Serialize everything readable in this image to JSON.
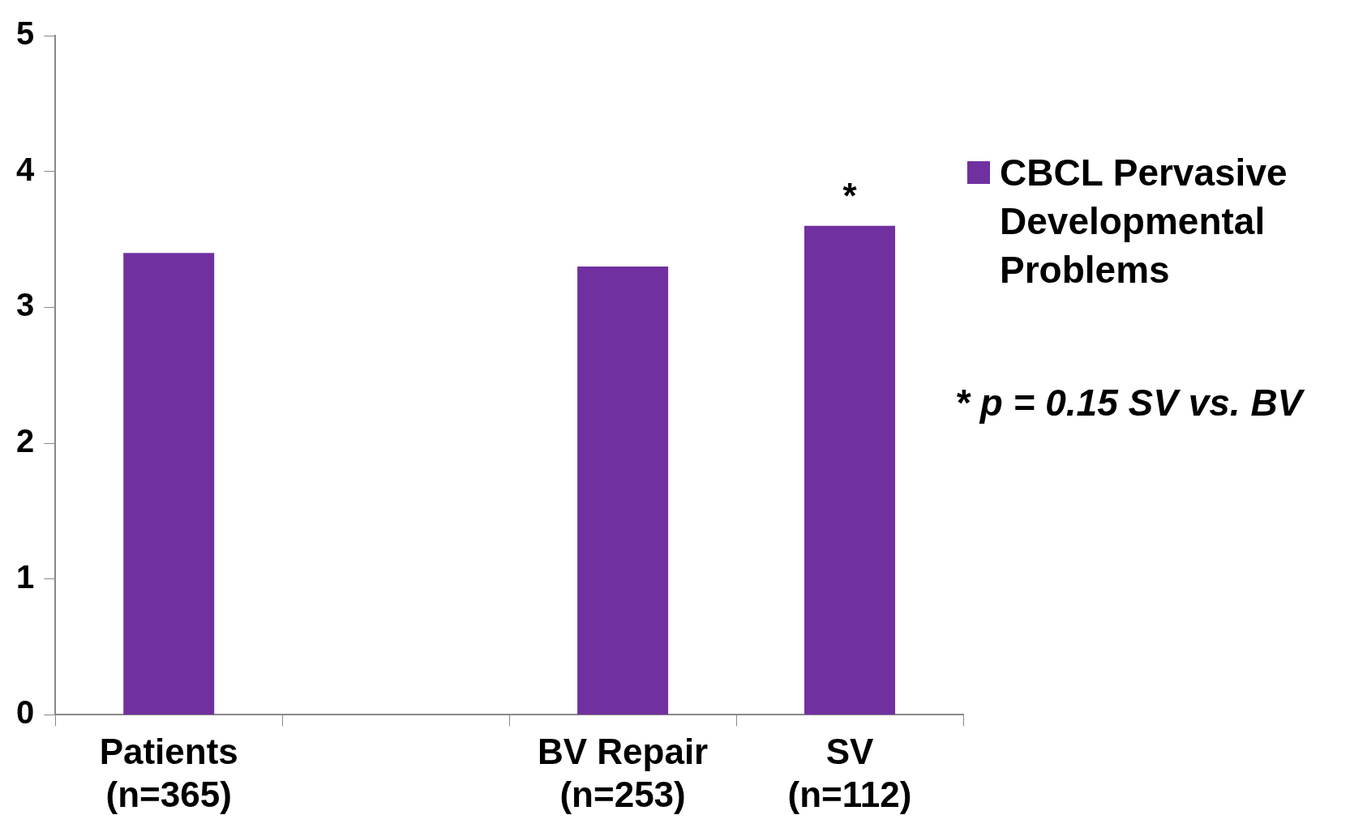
{
  "chart_data": {
    "type": "bar",
    "categories": [
      "Patients\n(n=365)",
      null,
      "BV Repair\n(n=253)",
      "SV\n(n=112)"
    ],
    "series": [
      {
        "name": "CBCL Pervasive Developmental Problems",
        "color": "#7030a0",
        "values": [
          3.4,
          null,
          3.3,
          3.6
        ]
      }
    ],
    "ylim": [
      0,
      5
    ],
    "yticks": [
      0,
      1,
      2,
      3,
      4,
      5
    ],
    "grid": false,
    "legend": "right",
    "annotations": [
      {
        "text": "*",
        "x": "SV\n(n=112)",
        "y": 3.6
      },
      "* p = 0.15 SV vs. BV"
    ]
  }
}
